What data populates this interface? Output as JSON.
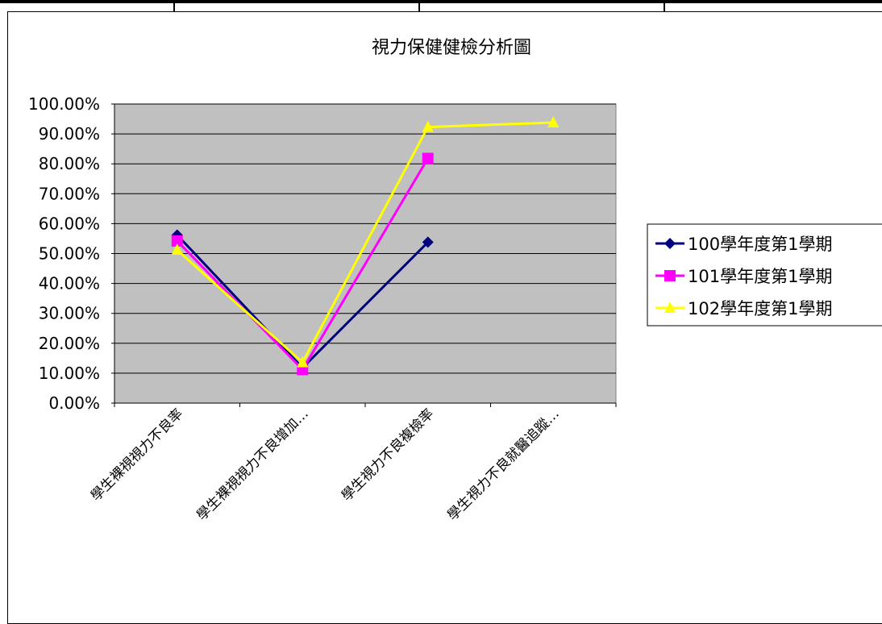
{
  "colors": {
    "plot_area": "#c0c0c0",
    "gridline": "#000000",
    "series": [
      "#000080",
      "#ff00ff",
      "#ffff00"
    ]
  },
  "icons": {
    "series_markers": [
      "diamond-icon",
      "square-icon",
      "triangle-icon"
    ]
  },
  "chart_data": {
    "type": "line",
    "title": "視力保健健檢分析圖",
    "categories": [
      "學生裸視視力不良率",
      "學生裸視視力不良增加率",
      "學生視力不良複檢率",
      "學生視力不良就醫追蹤率"
    ],
    "tick_labels_shown": [
      "學生裸視視力不良率",
      "學生裸視視力不良增加…",
      "學生視力不良複檢率",
      "學生視力不良就醫追蹤…"
    ],
    "y_tick_labels": [
      "0.00%",
      "10.00%",
      "20.00%",
      "30.00%",
      "40.00%",
      "50.00%",
      "60.00%",
      "70.00%",
      "80.00%",
      "90.00%",
      "100.00%"
    ],
    "ylim": [
      0,
      100
    ],
    "y_unit": "%",
    "grid": true,
    "legend_position": "right",
    "series": [
      {
        "name": "100學年度第1學期",
        "values": [
          56.2,
          11.8,
          53.8,
          null
        ]
      },
      {
        "name": "101學年度第1學期",
        "values": [
          54.2,
          11.2,
          81.8,
          null
        ]
      },
      {
        "name": "102學年度第1學期",
        "values": [
          51.2,
          13.6,
          92.3,
          93.8
        ]
      }
    ]
  }
}
